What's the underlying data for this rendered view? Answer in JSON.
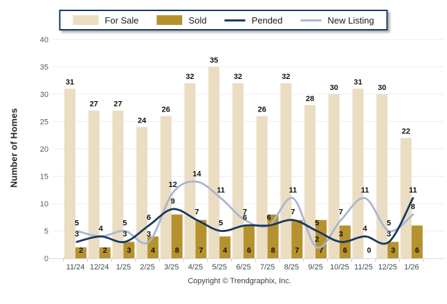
{
  "legend": {
    "items": [
      {
        "label": "For Sale",
        "swatch": "bar",
        "color": "#EADDC2"
      },
      {
        "label": "Sold",
        "swatch": "bar",
        "color": "#B6922F"
      },
      {
        "label": "Pended",
        "swatch": "line",
        "color": "#17375E"
      },
      {
        "label": "New Listing",
        "swatch": "line",
        "color": "#A9B5D1"
      }
    ]
  },
  "footer": {
    "copyright": "Copyright © Trendgraphix, Inc."
  },
  "chart_data": {
    "type": "bar",
    "subtype": "bar-line-combo",
    "title": "",
    "categories": [
      "11/24",
      "12/24",
      "1/25",
      "2/25",
      "3/25",
      "4/25",
      "5/25",
      "6/25",
      "7/25",
      "8/25",
      "9/25",
      "10/25",
      "11/25",
      "12/25",
      "1/26"
    ],
    "series": [
      {
        "name": "For Sale",
        "type": "bar",
        "color": "#EADDC2",
        "values": [
          31,
          27,
          27,
          24,
          26,
          32,
          35,
          32,
          26,
          32,
          28,
          30,
          31,
          30,
          22
        ]
      },
      {
        "name": "Sold",
        "type": "bar",
        "color": "#B6922F",
        "values": [
          2,
          2,
          3,
          4,
          8,
          7,
          4,
          6,
          8,
          7,
          7,
          6,
          0,
          3,
          6
        ]
      },
      {
        "name": "Pended",
        "type": "line",
        "color": "#17375E",
        "values": [
          3,
          4,
          3,
          6,
          9,
          7,
          5,
          6,
          6,
          7,
          5,
          3,
          4,
          3,
          11
        ]
      },
      {
        "name": "New Listing",
        "type": "line",
        "color": "#A9B5D1",
        "values": [
          5,
          4,
          5,
          3,
          12,
          14,
          11,
          7,
          6,
          11,
          2,
          7,
          11,
          5,
          8
        ]
      }
    ],
    "xlabel": "",
    "ylabel": "Number of Homes",
    "ylim": [
      0,
      40
    ],
    "yticks": [
      0,
      5,
      10,
      15,
      20,
      25,
      30,
      35,
      40
    ],
    "grid": true,
    "legend_position": "top-center",
    "colors": {
      "gridline": "#ECECEC",
      "axis_line": "#D9D9D9",
      "tick_mark": "#C9C9C9",
      "tick_text": "#595959",
      "month_text": "#3F4A55",
      "value_label": "#111111"
    }
  }
}
